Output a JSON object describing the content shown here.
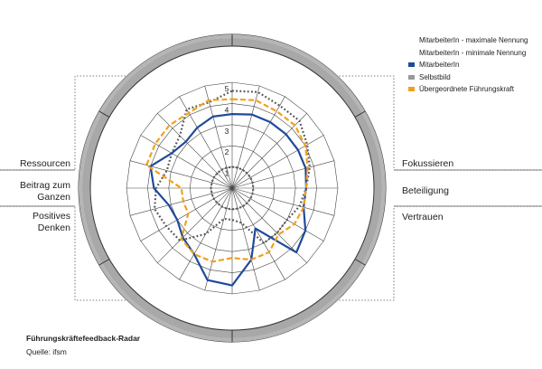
{
  "chart_data": {
    "type": "radar",
    "title": "Führungskräftefeedback-Radar",
    "source": "Quelle: ifsm",
    "rmax": 5,
    "axis_ticks": [
      "1",
      "2",
      "3",
      "4",
      "5"
    ],
    "spokes": 24,
    "groups": {
      "left": [
        {
          "label": "Ressourcen"
        },
        {
          "label": "Beitrag zum Ganzen"
        },
        {
          "label": "Positives Denken"
        }
      ],
      "right": [
        {
          "label": "Fokussieren"
        },
        {
          "label": "Beteiligung"
        },
        {
          "label": "Vertrauen"
        }
      ]
    },
    "series": [
      {
        "name": "MitarbeiterIn - maximale Nennung",
        "color": "#555555",
        "style": "dotted",
        "values": [
          4.6,
          4.7,
          4.5,
          4.5,
          4.1,
          3.8,
          3.5,
          3.3,
          3.0,
          3.0,
          3.0,
          1.7,
          1.5,
          1.5,
          2.5,
          3.5,
          3.6,
          3.8,
          3.6,
          3.2,
          3.3,
          3.5,
          4.3,
          4.2
        ]
      },
      {
        "name": "MitarbeiterIn - minimale Nennung",
        "color": "#555555",
        "style": "dotted",
        "values": [
          1.0,
          1.0,
          1.0,
          1.0,
          1.0,
          1.0,
          1.0,
          1.0,
          1.0,
          1.0,
          1.0,
          1.0,
          1.0,
          1.0,
          1.0,
          1.0,
          1.0,
          1.0,
          1.0,
          1.0,
          1.0,
          1.0,
          1.0,
          1.0
        ]
      },
      {
        "name": "MitarbeiterIn",
        "color": "#1f4a9a",
        "style": "solid",
        "values": [
          3.5,
          3.6,
          3.6,
          3.6,
          3.6,
          3.6,
          3.5,
          3.5,
          4.0,
          4.3,
          2.2,
          3.5,
          4.6,
          4.5,
          3.6,
          3.3,
          3.0,
          3.1,
          3.7,
          4.0,
          3.3,
          3.1,
          3.3,
          3.5
        ]
      },
      {
        "name": "Selbstbild",
        "color": "#999999",
        "style": "solid",
        "values": []
      },
      {
        "name": "Übergeordnete Führungskraft",
        "color": "#f2a01c",
        "style": "dashed",
        "values": [
          4.2,
          4.3,
          4.2,
          4.2,
          4.0,
          3.7,
          3.5,
          3.5,
          3.4,
          3.1,
          3.5,
          3.5,
          3.3,
          3.6,
          3.6,
          3.4,
          2.4,
          2.4,
          2.4,
          4.2,
          4.2,
          4.2,
          4.1,
          4.3
        ]
      }
    ],
    "legend_position": "top-right",
    "grid": true
  }
}
